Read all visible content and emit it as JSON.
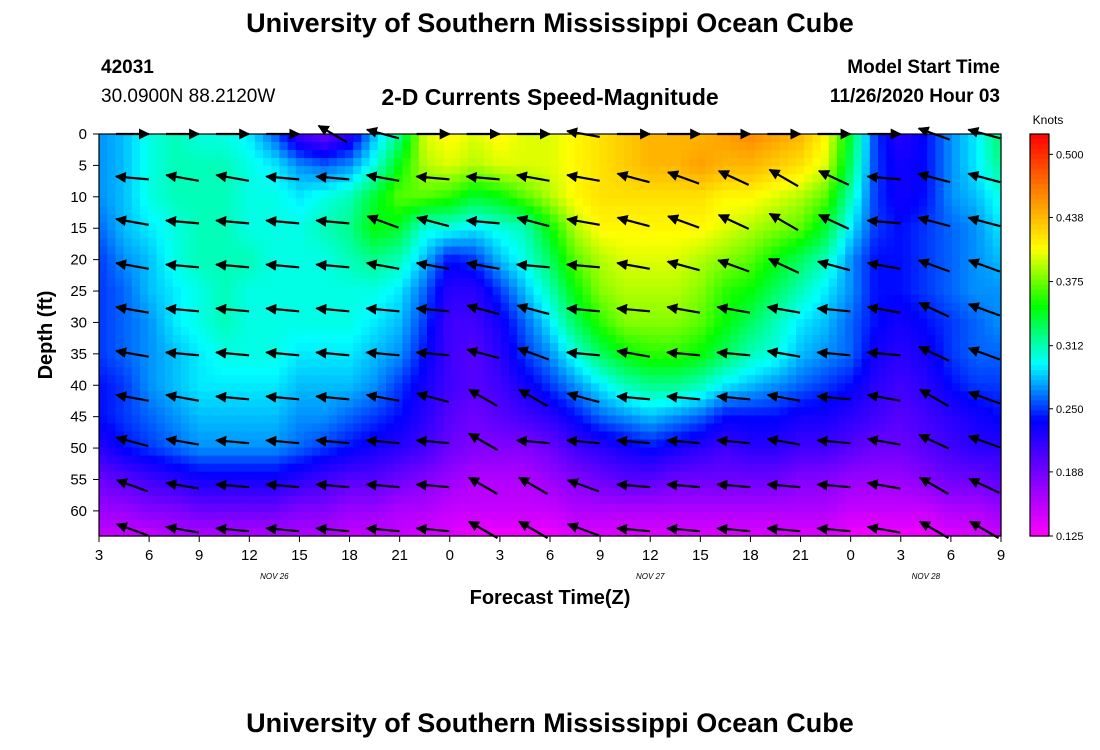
{
  "header": {
    "title": "University of Southern Mississippi Ocean Cube",
    "footer_title": "University of Southern Mississippi Ocean Cube",
    "station_id": "42031",
    "station_location": "30.0900N 88.2120W",
    "plot_title": "2-D Currents Speed-Magnitude",
    "model_label": "Model Start Time",
    "model_time": "11/26/2020 Hour 03"
  },
  "chart_data": {
    "type": "heatmap",
    "title": "2-D Currents Speed-Magnitude",
    "xlabel": "Forecast Time(Z)",
    "ylabel": "Depth (ft)",
    "x_range_hours_after_nov26_00z": [
      3,
      57
    ],
    "ylim": [
      0,
      64
    ],
    "y_inverted": true,
    "x_ticks": [
      "3",
      "6",
      "9",
      "12",
      "15",
      "18",
      "21",
      "0",
      "3",
      "6",
      "9",
      "12",
      "15",
      "18",
      "21",
      "0",
      "3",
      "6",
      "9"
    ],
    "y_ticks": [
      "0",
      "5",
      "10",
      "15",
      "20",
      "25",
      "30",
      "35",
      "40",
      "45",
      "50",
      "55",
      "60"
    ],
    "date_labels": [
      {
        "text": "NOV 26",
        "at_hour": 13.5
      },
      {
        "text": "NOV 27",
        "at_hour": 36
      },
      {
        "text": "NOV 28",
        "at_hour": 52.5
      }
    ],
    "colorbar": {
      "title": "Knots",
      "min": 0.125,
      "max": 0.52,
      "ticks": [
        "0.500",
        "0.438",
        "0.375",
        "0.312",
        "0.250",
        "0.188",
        "0.125"
      ],
      "colors": [
        "#ff00ff",
        "#8000ff",
        "#0000ff",
        "#00ffff",
        "#00ff00",
        "#ffff00",
        "#ff8000",
        "#ff0000"
      ]
    },
    "grid": false,
    "cols_hours": [
      3,
      4.5,
      6,
      7.5,
      9,
      10.5,
      12,
      13.5,
      15,
      16.5,
      18,
      19.5,
      21,
      22.5,
      24,
      25.5,
      27,
      28.5,
      30,
      31.5,
      33,
      34.5,
      36,
      37.5,
      39,
      40.5,
      42,
      43.5,
      45,
      46.5,
      48,
      49.5,
      51,
      52.5,
      54,
      55.5,
      57
    ],
    "rows_depth_ft": [
      0,
      5,
      10,
      15,
      20,
      25,
      30,
      35,
      40,
      45,
      50,
      55,
      60,
      64
    ],
    "speed_knots": [
      [
        0.27,
        0.28,
        0.3,
        0.31,
        0.3,
        0.3,
        0.29,
        0.26,
        0.21,
        0.19,
        0.22,
        0.28,
        0.32,
        0.4,
        0.41,
        0.4,
        0.41,
        0.4,
        0.4,
        0.41,
        0.42,
        0.43,
        0.44,
        0.44,
        0.44,
        0.45,
        0.46,
        0.45,
        0.44,
        0.41,
        0.34,
        0.25,
        0.22,
        0.24,
        0.27,
        0.29,
        0.33
      ],
      [
        0.27,
        0.28,
        0.3,
        0.31,
        0.31,
        0.31,
        0.3,
        0.29,
        0.27,
        0.26,
        0.27,
        0.3,
        0.35,
        0.39,
        0.4,
        0.39,
        0.4,
        0.4,
        0.4,
        0.41,
        0.42,
        0.43,
        0.44,
        0.44,
        0.45,
        0.44,
        0.44,
        0.43,
        0.42,
        0.4,
        0.33,
        0.25,
        0.23,
        0.24,
        0.27,
        0.29,
        0.32
      ],
      [
        0.27,
        0.28,
        0.3,
        0.31,
        0.31,
        0.31,
        0.3,
        0.3,
        0.29,
        0.3,
        0.31,
        0.34,
        0.37,
        0.37,
        0.36,
        0.34,
        0.35,
        0.37,
        0.39,
        0.41,
        0.42,
        0.42,
        0.42,
        0.42,
        0.42,
        0.41,
        0.41,
        0.4,
        0.39,
        0.37,
        0.31,
        0.25,
        0.23,
        0.24,
        0.27,
        0.28,
        0.3
      ],
      [
        0.26,
        0.28,
        0.29,
        0.3,
        0.31,
        0.31,
        0.3,
        0.3,
        0.3,
        0.31,
        0.32,
        0.35,
        0.34,
        0.3,
        0.3,
        0.29,
        0.3,
        0.31,
        0.35,
        0.39,
        0.41,
        0.41,
        0.41,
        0.41,
        0.41,
        0.4,
        0.39,
        0.38,
        0.37,
        0.34,
        0.29,
        0.25,
        0.24,
        0.25,
        0.26,
        0.27,
        0.29
      ],
      [
        0.25,
        0.27,
        0.28,
        0.3,
        0.31,
        0.31,
        0.31,
        0.3,
        0.3,
        0.3,
        0.31,
        0.32,
        0.31,
        0.28,
        0.24,
        0.25,
        0.28,
        0.3,
        0.33,
        0.37,
        0.39,
        0.4,
        0.4,
        0.4,
        0.39,
        0.38,
        0.37,
        0.35,
        0.33,
        0.31,
        0.27,
        0.24,
        0.24,
        0.25,
        0.26,
        0.27,
        0.28
      ],
      [
        0.25,
        0.26,
        0.28,
        0.29,
        0.3,
        0.31,
        0.3,
        0.3,
        0.3,
        0.3,
        0.3,
        0.3,
        0.29,
        0.26,
        0.22,
        0.22,
        0.25,
        0.28,
        0.31,
        0.35,
        0.38,
        0.39,
        0.39,
        0.39,
        0.38,
        0.36,
        0.35,
        0.33,
        0.31,
        0.29,
        0.27,
        0.24,
        0.24,
        0.25,
        0.26,
        0.27,
        0.27
      ],
      [
        0.25,
        0.26,
        0.27,
        0.29,
        0.3,
        0.31,
        0.3,
        0.3,
        0.3,
        0.3,
        0.3,
        0.29,
        0.28,
        0.25,
        0.21,
        0.21,
        0.23,
        0.26,
        0.29,
        0.33,
        0.36,
        0.38,
        0.38,
        0.38,
        0.37,
        0.35,
        0.33,
        0.31,
        0.29,
        0.28,
        0.26,
        0.24,
        0.23,
        0.24,
        0.25,
        0.26,
        0.27
      ],
      [
        0.25,
        0.26,
        0.27,
        0.28,
        0.29,
        0.3,
        0.3,
        0.3,
        0.29,
        0.29,
        0.29,
        0.28,
        0.27,
        0.24,
        0.21,
        0.2,
        0.22,
        0.25,
        0.27,
        0.3,
        0.33,
        0.35,
        0.36,
        0.36,
        0.35,
        0.33,
        0.31,
        0.3,
        0.28,
        0.27,
        0.26,
        0.23,
        0.22,
        0.23,
        0.25,
        0.26,
        0.26
      ],
      [
        0.24,
        0.25,
        0.27,
        0.28,
        0.29,
        0.29,
        0.29,
        0.29,
        0.28,
        0.28,
        0.28,
        0.27,
        0.25,
        0.23,
        0.21,
        0.2,
        0.21,
        0.23,
        0.25,
        0.27,
        0.29,
        0.31,
        0.32,
        0.32,
        0.31,
        0.29,
        0.28,
        0.27,
        0.26,
        0.25,
        0.24,
        0.22,
        0.21,
        0.22,
        0.24,
        0.25,
        0.25
      ],
      [
        0.24,
        0.25,
        0.26,
        0.27,
        0.28,
        0.28,
        0.28,
        0.28,
        0.27,
        0.27,
        0.26,
        0.25,
        0.24,
        0.22,
        0.2,
        0.19,
        0.2,
        0.21,
        0.22,
        0.24,
        0.26,
        0.27,
        0.28,
        0.27,
        0.26,
        0.24,
        0.24,
        0.24,
        0.23,
        0.23,
        0.22,
        0.21,
        0.2,
        0.21,
        0.22,
        0.23,
        0.24
      ],
      [
        0.22,
        0.24,
        0.25,
        0.26,
        0.27,
        0.27,
        0.27,
        0.27,
        0.26,
        0.25,
        0.24,
        0.23,
        0.22,
        0.21,
        0.19,
        0.18,
        0.18,
        0.18,
        0.19,
        0.21,
        0.22,
        0.23,
        0.24,
        0.23,
        0.22,
        0.21,
        0.22,
        0.22,
        0.21,
        0.21,
        0.2,
        0.19,
        0.19,
        0.2,
        0.21,
        0.22,
        0.22
      ],
      [
        0.19,
        0.2,
        0.21,
        0.22,
        0.23,
        0.23,
        0.23,
        0.23,
        0.22,
        0.21,
        0.2,
        0.2,
        0.19,
        0.18,
        0.17,
        0.16,
        0.16,
        0.16,
        0.17,
        0.18,
        0.19,
        0.2,
        0.2,
        0.19,
        0.19,
        0.19,
        0.19,
        0.19,
        0.18,
        0.18,
        0.17,
        0.17,
        0.17,
        0.18,
        0.19,
        0.19,
        0.2
      ],
      [
        0.17,
        0.17,
        0.18,
        0.18,
        0.19,
        0.19,
        0.19,
        0.19,
        0.18,
        0.18,
        0.17,
        0.17,
        0.16,
        0.16,
        0.15,
        0.15,
        0.15,
        0.15,
        0.15,
        0.16,
        0.16,
        0.16,
        0.16,
        0.16,
        0.16,
        0.16,
        0.16,
        0.16,
        0.16,
        0.16,
        0.15,
        0.15,
        0.15,
        0.15,
        0.16,
        0.16,
        0.17
      ],
      [
        0.15,
        0.15,
        0.15,
        0.16,
        0.16,
        0.16,
        0.16,
        0.16,
        0.16,
        0.16,
        0.15,
        0.15,
        0.15,
        0.14,
        0.14,
        0.13,
        0.13,
        0.13,
        0.13,
        0.14,
        0.14,
        0.14,
        0.14,
        0.14,
        0.14,
        0.14,
        0.14,
        0.14,
        0.14,
        0.14,
        0.13,
        0.13,
        0.13,
        0.13,
        0.14,
        0.14,
        0.15
      ]
    ],
    "vectors": {
      "hours": [
        5,
        8,
        11,
        14,
        17,
        20,
        23,
        26,
        29,
        32,
        35,
        38,
        41,
        44,
        47,
        50,
        53,
        56
      ],
      "depths_ft": [
        0,
        7,
        14,
        21,
        28,
        35,
        42,
        49,
        56,
        63
      ],
      "direction_deg_from_east": [
        [
          0,
          0,
          0,
          0,
          150,
          165,
          0,
          0,
          0,
          170,
          0,
          0,
          0,
          0,
          0,
          0,
          160,
          165
        ],
        [
          175,
          170,
          170,
          175,
          175,
          170,
          175,
          175,
          170,
          170,
          165,
          160,
          155,
          150,
          155,
          175,
          165,
          165
        ],
        [
          170,
          175,
          175,
          175,
          175,
          160,
          165,
          175,
          165,
          170,
          165,
          160,
          155,
          150,
          155,
          175,
          165,
          165
        ],
        [
          170,
          175,
          175,
          175,
          175,
          170,
          170,
          170,
          175,
          175,
          170,
          165,
          160,
          155,
          165,
          170,
          160,
          160
        ],
        [
          170,
          175,
          175,
          175,
          175,
          175,
          175,
          165,
          165,
          175,
          175,
          170,
          170,
          170,
          175,
          170,
          155,
          160
        ],
        [
          170,
          175,
          175,
          175,
          175,
          175,
          175,
          165,
          160,
          175,
          170,
          175,
          175,
          170,
          175,
          175,
          155,
          160
        ],
        [
          170,
          170,
          175,
          175,
          175,
          170,
          165,
          150,
          150,
          165,
          175,
          175,
          175,
          170,
          175,
          170,
          150,
          160
        ],
        [
          165,
          170,
          175,
          175,
          175,
          175,
          175,
          150,
          175,
          175,
          175,
          175,
          175,
          170,
          175,
          170,
          155,
          160
        ],
        [
          160,
          170,
          175,
          175,
          175,
          175,
          175,
          150,
          150,
          160,
          175,
          175,
          175,
          175,
          175,
          170,
          150,
          155
        ],
        [
          160,
          170,
          175,
          175,
          175,
          175,
          175,
          150,
          150,
          160,
          175,
          175,
          175,
          175,
          175,
          170,
          150,
          150
        ]
      ]
    }
  }
}
